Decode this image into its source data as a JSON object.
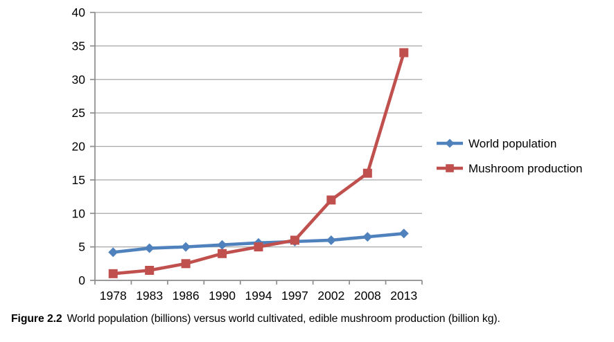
{
  "figure": {
    "caption_label": "Figure 2.2",
    "caption_text": "World population (billions) versus world cultivated, edible mushroom production (billion kg)."
  },
  "chart_data": {
    "type": "line",
    "title": "",
    "xlabel": "",
    "ylabel": "",
    "categories": [
      "1978",
      "1983",
      "1986",
      "1990",
      "1994",
      "1997",
      "2002",
      "2008",
      "2013"
    ],
    "series": [
      {
        "name": "World population",
        "marker": "diamond",
        "color": "#4f81bd",
        "values": [
          4.2,
          4.8,
          5.0,
          5.3,
          5.6,
          5.8,
          6.0,
          6.5,
          7.0
        ]
      },
      {
        "name": "Mushroom production",
        "marker": "square",
        "color": "#c0504d",
        "values": [
          1.0,
          1.5,
          2.5,
          4.0,
          5.0,
          6.0,
          12.0,
          16.0,
          34.0
        ]
      }
    ],
    "ylim": [
      0,
      40
    ],
    "ytick_step": 5,
    "ytick_labels": [
      "0",
      "5",
      "10",
      "15",
      "20",
      "25",
      "30",
      "35",
      "40"
    ],
    "grid": true,
    "legend_position": "right",
    "colors": {
      "axis": "#8c8c8c",
      "gridline": "#a6a6a6",
      "tick_label": "#000000"
    }
  }
}
